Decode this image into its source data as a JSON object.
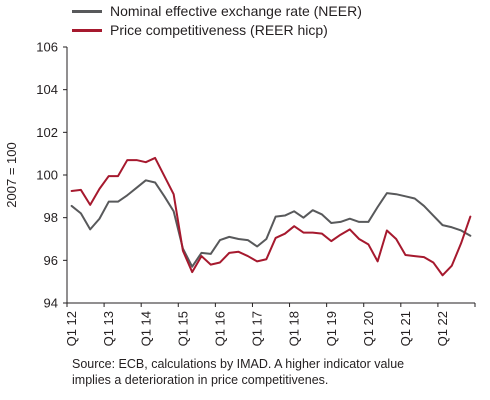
{
  "chart_data": {
    "type": "line",
    "ylabel": "2007 = 100",
    "ylim": [
      94,
      106
    ],
    "yticks": [
      94,
      96,
      98,
      100,
      102,
      104,
      106
    ],
    "xtick_labels": [
      "Q1 12",
      "Q1 13",
      "Q1 14",
      "Q1 15",
      "Q1 16",
      "Q1 17",
      "Q1 18",
      "Q1 19",
      "Q1 20",
      "Q1 21",
      "Q1 22"
    ],
    "x": [
      "Q1 12",
      "Q2 12",
      "Q3 12",
      "Q4 12",
      "Q1 13",
      "Q2 13",
      "Q3 13",
      "Q4 13",
      "Q1 14",
      "Q2 14",
      "Q3 14",
      "Q4 14",
      "Q1 15",
      "Q2 15",
      "Q3 15",
      "Q4 15",
      "Q1 16",
      "Q2 16",
      "Q3 16",
      "Q4 16",
      "Q1 17",
      "Q2 17",
      "Q3 17",
      "Q4 17",
      "Q1 18",
      "Q2 18",
      "Q3 18",
      "Q4 18",
      "Q1 19",
      "Q2 19",
      "Q3 19",
      "Q4 19",
      "Q1 20",
      "Q2 20",
      "Q3 20",
      "Q4 20",
      "Q1 21",
      "Q2 21",
      "Q3 21",
      "Q4 21",
      "Q1 22",
      "Q2 22",
      "Q3 22",
      "Q4 22"
    ],
    "series": [
      {
        "name": "Nominal effective exchange rate (NEER)",
        "color": "#58595b",
        "values": [
          98.55,
          98.2,
          97.45,
          97.95,
          98.75,
          98.75,
          99.05,
          99.4,
          99.75,
          99.65,
          99.0,
          98.3,
          96.55,
          95.7,
          96.35,
          96.3,
          96.95,
          97.1,
          97.0,
          96.95,
          96.65,
          97.0,
          98.05,
          98.1,
          98.3,
          98.0,
          98.35,
          98.15,
          97.75,
          97.8,
          97.95,
          97.8,
          97.8,
          98.5,
          99.15,
          99.1,
          99.0,
          98.9,
          98.55,
          98.1,
          97.65,
          97.55,
          97.4,
          97.15
        ]
      },
      {
        "name": "Price competitiveness (REER hicp)",
        "color": "#a6192e",
        "values": [
          99.25,
          99.3,
          98.6,
          99.35,
          99.95,
          99.95,
          100.7,
          100.7,
          100.6,
          100.8,
          99.95,
          99.1,
          96.45,
          95.45,
          96.2,
          95.8,
          95.9,
          96.35,
          96.4,
          96.2,
          95.95,
          96.05,
          97.05,
          97.25,
          97.6,
          97.3,
          97.3,
          97.25,
          96.9,
          97.2,
          97.45,
          97.0,
          96.75,
          95.95,
          97.4,
          97.0,
          96.25,
          96.2,
          96.15,
          95.9,
          95.3,
          95.75,
          96.8,
          98.05
        ]
      }
    ],
    "grid": false,
    "legend_position": "top-left"
  },
  "source_note": [
    "Source: ECB, calculations by IMAD. A higher indicator value",
    "implies a deterioration in price competitivenes."
  ]
}
